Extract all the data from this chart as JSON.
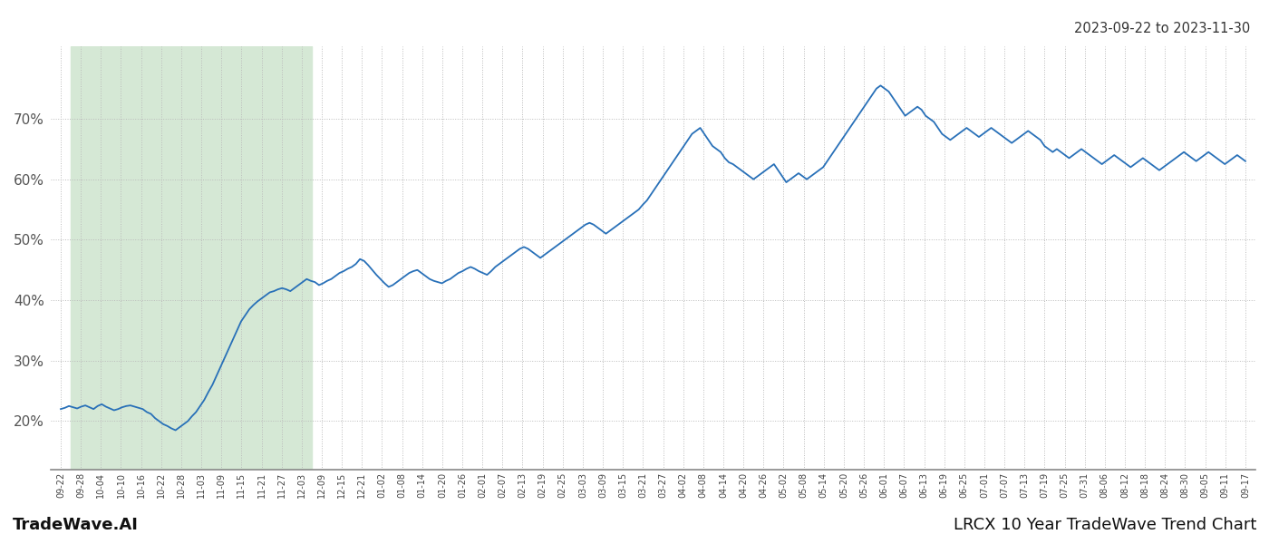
{
  "title_top_right": "2023-09-22 to 2023-11-30",
  "title_bottom_left": "TradeWave.AI",
  "title_bottom_right": "LRCX 10 Year TradeWave Trend Chart",
  "line_color": "#2870b8",
  "line_width": 1.3,
  "grid_color": "#bbbbbb",
  "background_color": "#ffffff",
  "shaded_region_color": "#d5e8d5",
  "ylim": [
    12,
    82
  ],
  "yticks": [
    20,
    30,
    40,
    50,
    60,
    70
  ],
  "x_labels": [
    "09-22",
    "09-28",
    "10-04",
    "10-10",
    "10-16",
    "10-22",
    "10-28",
    "11-03",
    "11-09",
    "11-15",
    "11-21",
    "11-27",
    "12-03",
    "12-09",
    "12-15",
    "12-21",
    "01-02",
    "01-08",
    "01-14",
    "01-20",
    "01-26",
    "02-01",
    "02-07",
    "02-13",
    "02-19",
    "02-25",
    "03-03",
    "03-09",
    "03-15",
    "03-21",
    "03-27",
    "04-02",
    "04-08",
    "04-14",
    "04-20",
    "04-26",
    "05-02",
    "05-08",
    "05-14",
    "05-20",
    "05-26",
    "06-01",
    "06-07",
    "06-13",
    "06-19",
    "06-25",
    "07-01",
    "07-07",
    "07-13",
    "07-19",
    "07-25",
    "07-31",
    "08-06",
    "08-12",
    "08-18",
    "08-24",
    "08-30",
    "09-05",
    "09-11",
    "09-17"
  ],
  "shaded_start_label": "09-28",
  "shaded_end_label": "12-03",
  "values": [
    22.0,
    22.2,
    22.5,
    22.3,
    22.1,
    22.4,
    22.6,
    22.3,
    22.0,
    22.5,
    22.8,
    22.4,
    22.1,
    21.8,
    22.0,
    22.3,
    22.5,
    22.6,
    22.4,
    22.2,
    22.0,
    21.5,
    21.2,
    20.5,
    20.0,
    19.5,
    19.2,
    18.8,
    18.5,
    19.0,
    19.5,
    20.0,
    20.8,
    21.5,
    22.5,
    23.5,
    24.8,
    26.0,
    27.5,
    29.0,
    30.5,
    32.0,
    33.5,
    35.0,
    36.5,
    37.5,
    38.5,
    39.2,
    39.8,
    40.3,
    40.8,
    41.3,
    41.5,
    41.8,
    42.0,
    41.8,
    41.5,
    42.0,
    42.5,
    43.0,
    43.5,
    43.2,
    43.0,
    42.5,
    42.8,
    43.2,
    43.5,
    44.0,
    44.5,
    44.8,
    45.2,
    45.5,
    46.0,
    46.8,
    46.5,
    45.8,
    45.0,
    44.2,
    43.5,
    42.8,
    42.2,
    42.5,
    43.0,
    43.5,
    44.0,
    44.5,
    44.8,
    45.0,
    44.5,
    44.0,
    43.5,
    43.2,
    43.0,
    42.8,
    43.2,
    43.5,
    44.0,
    44.5,
    44.8,
    45.2,
    45.5,
    45.2,
    44.8,
    44.5,
    44.2,
    44.8,
    45.5,
    46.0,
    46.5,
    47.0,
    47.5,
    48.0,
    48.5,
    48.8,
    48.5,
    48.0,
    47.5,
    47.0,
    47.5,
    48.0,
    48.5,
    49.0,
    49.5,
    50.0,
    50.5,
    51.0,
    51.5,
    52.0,
    52.5,
    52.8,
    52.5,
    52.0,
    51.5,
    51.0,
    51.5,
    52.0,
    52.5,
    53.0,
    53.5,
    54.0,
    54.5,
    55.0,
    55.8,
    56.5,
    57.5,
    58.5,
    59.5,
    60.5,
    61.5,
    62.5,
    63.5,
    64.5,
    65.5,
    66.5,
    67.5,
    68.0,
    68.5,
    67.5,
    66.5,
    65.5,
    65.0,
    64.5,
    63.5,
    62.8,
    62.5,
    62.0,
    61.5,
    61.0,
    60.5,
    60.0,
    60.5,
    61.0,
    61.5,
    62.0,
    62.5,
    61.5,
    60.5,
    59.5,
    60.0,
    60.5,
    61.0,
    60.5,
    60.0,
    60.5,
    61.0,
    61.5,
    62.0,
    63.0,
    64.0,
    65.0,
    66.0,
    67.0,
    68.0,
    69.0,
    70.0,
    71.0,
    72.0,
    73.0,
    74.0,
    75.0,
    75.5,
    75.0,
    74.5,
    73.5,
    72.5,
    71.5,
    70.5,
    71.0,
    71.5,
    72.0,
    71.5,
    70.5,
    70.0,
    69.5,
    68.5,
    67.5,
    67.0,
    66.5,
    67.0,
    67.5,
    68.0,
    68.5,
    68.0,
    67.5,
    67.0,
    67.5,
    68.0,
    68.5,
    68.0,
    67.5,
    67.0,
    66.5,
    66.0,
    66.5,
    67.0,
    67.5,
    68.0,
    67.5,
    67.0,
    66.5,
    65.5,
    65.0,
    64.5,
    65.0,
    64.5,
    64.0,
    63.5,
    64.0,
    64.5,
    65.0,
    64.5,
    64.0,
    63.5,
    63.0,
    62.5,
    63.0,
    63.5,
    64.0,
    63.5,
    63.0,
    62.5,
    62.0,
    62.5,
    63.0,
    63.5,
    63.0,
    62.5,
    62.0,
    61.5,
    62.0,
    62.5,
    63.0,
    63.5,
    64.0,
    64.5,
    64.0,
    63.5,
    63.0,
    63.5,
    64.0,
    64.5,
    64.0,
    63.5,
    63.0,
    62.5,
    63.0,
    63.5,
    64.0,
    63.5,
    63.0
  ]
}
